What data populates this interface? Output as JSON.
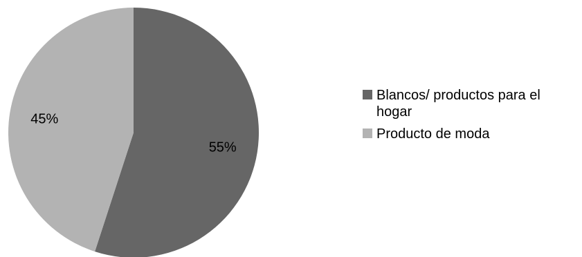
{
  "chart_data": {
    "type": "pie",
    "categories": [
      "Blancos/ productos para el hogar",
      "Producto de moda"
    ],
    "values": [
      55,
      45
    ],
    "labels": [
      "55%",
      "45%"
    ],
    "colors": [
      "#666666",
      "#b3b3b3"
    ],
    "start_angle_deg": 0,
    "direction": "clockwise",
    "legend_position": "right",
    "title": ""
  }
}
